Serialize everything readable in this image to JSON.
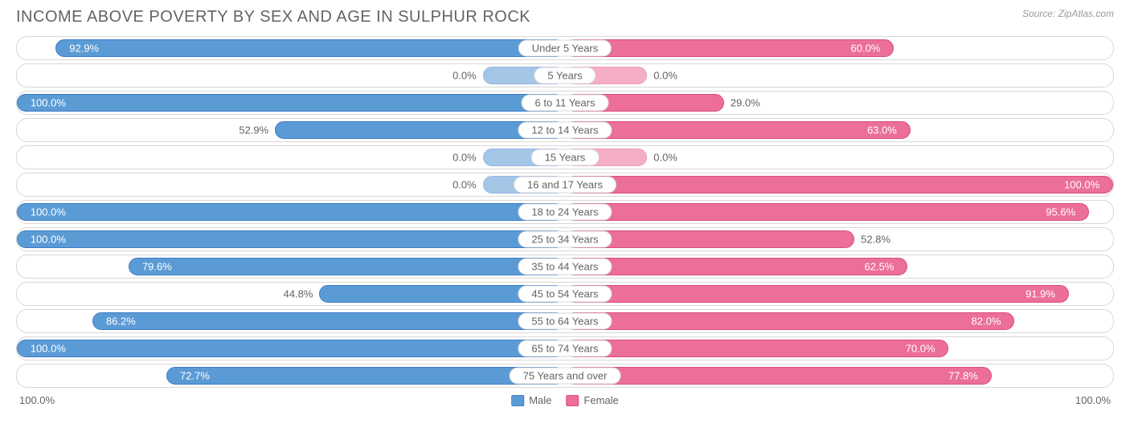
{
  "title": "INCOME ABOVE POVERTY BY SEX AND AGE IN SULPHUR ROCK",
  "source": "Source: ZipAtlas.com",
  "chart": {
    "type": "diverging-bar",
    "male_color": "#5b9bd5",
    "male_border": "#3d7cc9",
    "female_color": "#ec6e9a",
    "female_border": "#d94e80",
    "track_border": "#d8d8d8",
    "background": "#ffffff",
    "label_color": "#636363",
    "min_bar_pct": 15,
    "rows": [
      {
        "category": "Under 5 Years",
        "male": 92.9,
        "female": 60.0,
        "male_label": "92.9%",
        "female_label": "60.0%",
        "male_zero": false,
        "female_zero": false
      },
      {
        "category": "5 Years",
        "male": 0.0,
        "female": 0.0,
        "male_label": "0.0%",
        "female_label": "0.0%",
        "male_zero": true,
        "female_zero": true
      },
      {
        "category": "6 to 11 Years",
        "male": 100.0,
        "female": 29.0,
        "male_label": "100.0%",
        "female_label": "29.0%",
        "male_zero": false,
        "female_zero": false
      },
      {
        "category": "12 to 14 Years",
        "male": 52.9,
        "female": 63.0,
        "male_label": "52.9%",
        "female_label": "63.0%",
        "male_zero": false,
        "female_zero": false
      },
      {
        "category": "15 Years",
        "male": 0.0,
        "female": 0.0,
        "male_label": "0.0%",
        "female_label": "0.0%",
        "male_zero": true,
        "female_zero": true
      },
      {
        "category": "16 and 17 Years",
        "male": 0.0,
        "female": 100.0,
        "male_label": "0.0%",
        "female_label": "100.0%",
        "male_zero": true,
        "female_zero": false
      },
      {
        "category": "18 to 24 Years",
        "male": 100.0,
        "female": 95.6,
        "male_label": "100.0%",
        "female_label": "95.6%",
        "male_zero": false,
        "female_zero": false
      },
      {
        "category": "25 to 34 Years",
        "male": 100.0,
        "female": 52.8,
        "male_label": "100.0%",
        "female_label": "52.8%",
        "male_zero": false,
        "female_zero": false
      },
      {
        "category": "35 to 44 Years",
        "male": 79.6,
        "female": 62.5,
        "male_label": "79.6%",
        "female_label": "62.5%",
        "male_zero": false,
        "female_zero": false
      },
      {
        "category": "45 to 54 Years",
        "male": 44.8,
        "female": 91.9,
        "male_label": "44.8%",
        "female_label": "91.9%",
        "male_zero": false,
        "female_zero": false
      },
      {
        "category": "55 to 64 Years",
        "male": 86.2,
        "female": 82.0,
        "male_label": "86.2%",
        "female_label": "82.0%",
        "male_zero": false,
        "female_zero": false
      },
      {
        "category": "65 to 74 Years",
        "male": 100.0,
        "female": 70.0,
        "male_label": "100.0%",
        "female_label": "70.0%",
        "male_zero": false,
        "female_zero": false
      },
      {
        "category": "75 Years and over",
        "male": 72.7,
        "female": 77.8,
        "male_label": "72.7%",
        "female_label": "77.8%",
        "male_zero": false,
        "female_zero": false
      }
    ],
    "axis": {
      "left": "100.0%",
      "right": "100.0%"
    },
    "legend": {
      "male": "Male",
      "female": "Female"
    }
  }
}
